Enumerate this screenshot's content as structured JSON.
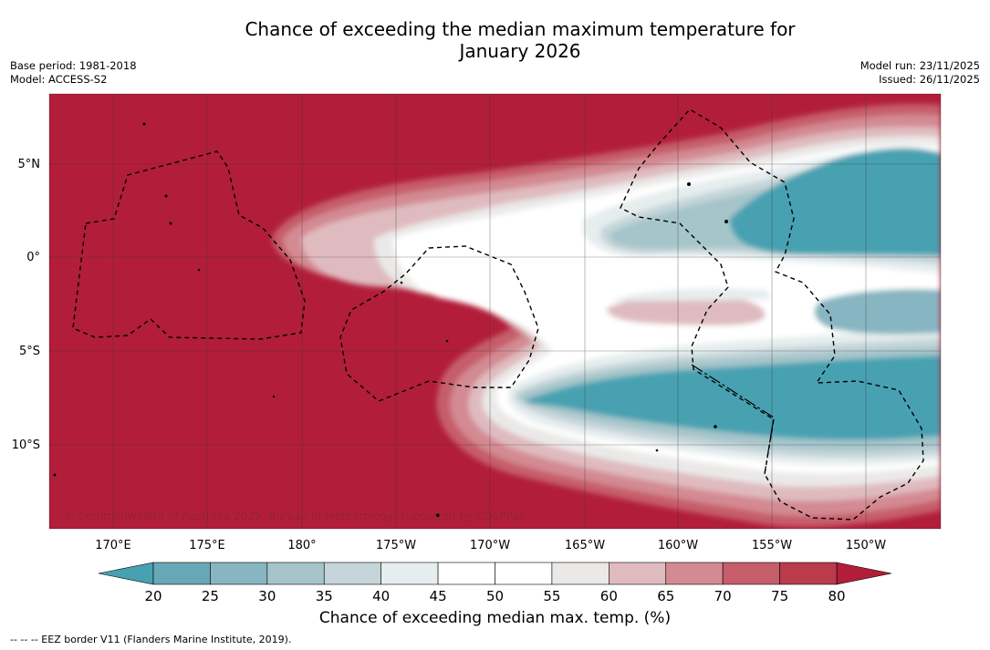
{
  "header": {
    "title_line1": "Chance of exceeding the median maximum temperature for",
    "title_line2": "January 2026",
    "base_period": "Base period: 1981-2018",
    "model": "Model: ACCESS-S2",
    "model_run": "Model run: 23/11/2025",
    "issued": "Issued: 26/11/2025"
  },
  "map": {
    "copyright": "© Commonwealth of Australia 2025, Bureau of Meteorology, supported by COSPPac",
    "lat_labels": [
      "5°N",
      "0°",
      "5°S",
      "10°S"
    ],
    "lon_labels": [
      "170°E",
      "175°E",
      "180°",
      "175°W",
      "170°W",
      "165°W",
      "160°W",
      "155°W",
      "150°W"
    ]
  },
  "colorbar": {
    "title": "Chance of exceeding median max. temp. (%)",
    "ticks": [
      "20",
      "25",
      "30",
      "35",
      "40",
      "45",
      "50",
      "55",
      "60",
      "65",
      "70",
      "75",
      "80"
    ],
    "colors": [
      "#67a7b6",
      "#87b5c1",
      "#a5c5cb",
      "#c5d5d9",
      "#e6edee",
      "#ffffff",
      "#ffffff",
      "#ebe9e8",
      "#dfbbc0",
      "#d38a92",
      "#c65d6b",
      "#b93b4c"
    ],
    "low_color": "#47a1b1",
    "high_color": "#b21e3a"
  },
  "footnote": "-- -- -- EEZ border V11 (Flanders Marine Institute, 2019)."
}
